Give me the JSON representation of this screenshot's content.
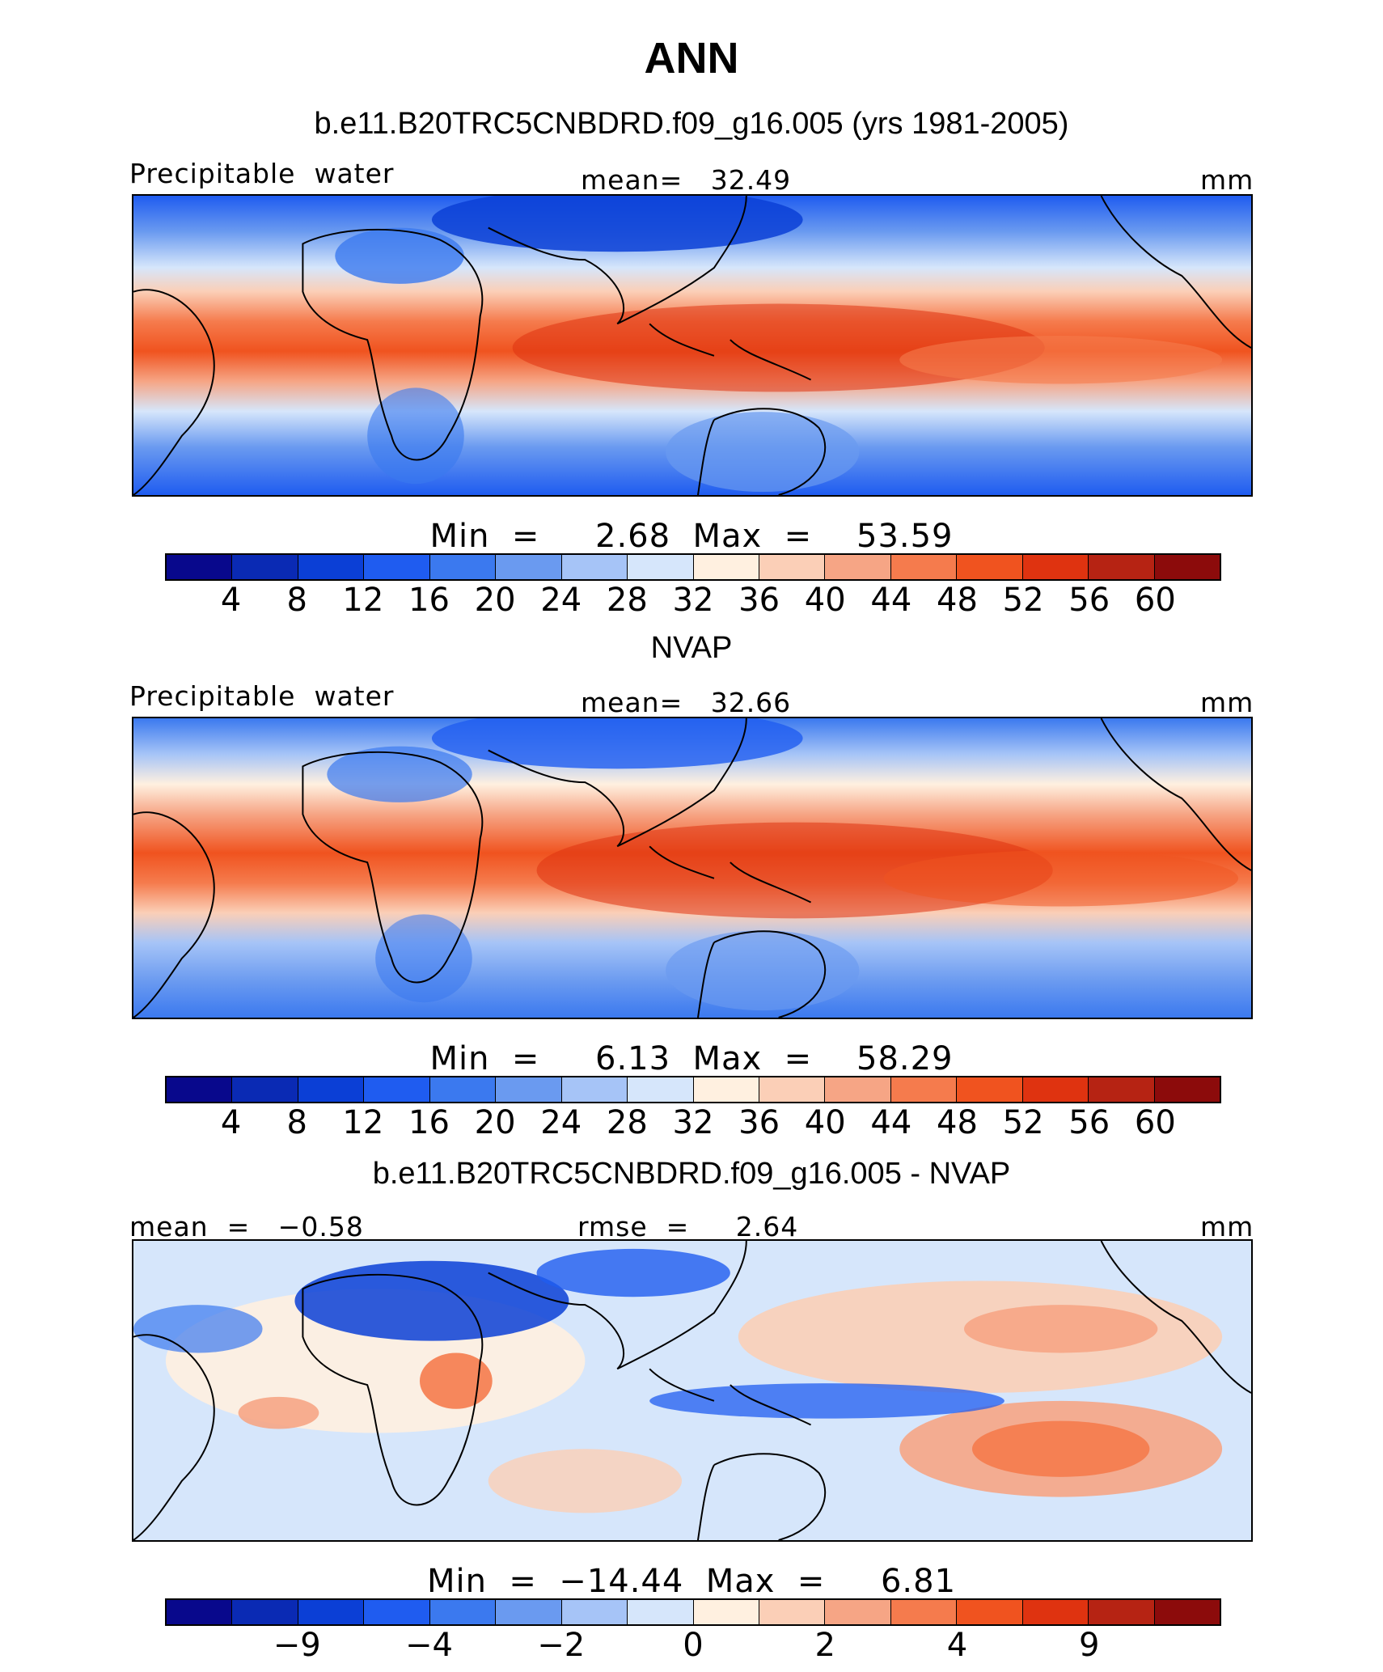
{
  "title": "ANN",
  "colors": {
    "diverging_palette": [
      "#08088c",
      "#0a2ab4",
      "#0b3fd6",
      "#1f5cf0",
      "#3b79ef",
      "#6a9af0",
      "#a6c4f7",
      "#d6e6fb",
      "#fff0e0",
      "#fbcfb7",
      "#f6a585",
      "#f57b4d",
      "#f0531f",
      "#df3310",
      "#b62313",
      "#8c0b0b"
    ]
  },
  "panels": [
    {
      "title": "b.e11.B20TRC5CNBDRD.f09_g16.005 (yrs 1981-2005)",
      "left_label": "Precipitable  water",
      "center_label": "mean=   32.49",
      "units": "mm",
      "minmax": "Min  =     2.68  Max  =    53.59",
      "colorbar_ticks": [
        "4",
        "8",
        "12",
        "16",
        "20",
        "24",
        "28",
        "32",
        "36",
        "40",
        "44",
        "48",
        "52",
        "56",
        "60"
      ],
      "map_icon": "world-map-contour-icon"
    },
    {
      "title": "NVAP",
      "left_label": "Precipitable  water",
      "center_label": "mean=   32.66",
      "units": "mm",
      "minmax": "Min  =     6.13  Max  =    58.29",
      "colorbar_ticks": [
        "4",
        "8",
        "12",
        "16",
        "20",
        "24",
        "28",
        "32",
        "36",
        "40",
        "44",
        "48",
        "52",
        "56",
        "60"
      ],
      "map_icon": "world-map-contour-icon"
    },
    {
      "title": "b.e11.B20TRC5CNBDRD.f09_g16.005 - NVAP",
      "left_label": "mean  =   −0.58",
      "center_label": "rmse  =     2.64",
      "units": "mm",
      "minmax": "Min  =  −14.44  Max  =     6.81",
      "colorbar_ticks": [
        "−9",
        "−4",
        "−2",
        "0",
        "2",
        "4",
        "9"
      ],
      "map_icon": "world-map-difference-icon"
    }
  ],
  "chart_data": [
    {
      "type": "heatmap",
      "title": "b.e11.B20TRC5CNBDRD.f09_g16.005 (yrs 1981-2005)",
      "variable": "Precipitable  water",
      "units": "mm",
      "mean": 32.49,
      "min": 2.68,
      "max": 53.59,
      "contour_levels": [
        4,
        8,
        12,
        16,
        20,
        24,
        28,
        32,
        36,
        40,
        44,
        48,
        52,
        56,
        60
      ]
    },
    {
      "type": "heatmap",
      "title": "NVAP",
      "variable": "Precipitable  water",
      "units": "mm",
      "mean": 32.66,
      "min": 6.13,
      "max": 58.29,
      "contour_levels": [
        4,
        8,
        12,
        16,
        20,
        24,
        28,
        32,
        36,
        40,
        44,
        48,
        52,
        56,
        60
      ]
    },
    {
      "type": "heatmap",
      "title": "b.e11.B20TRC5CNBDRD.f09_g16.005 - NVAP",
      "units": "mm",
      "mean": -0.58,
      "rmse": 2.64,
      "min": -14.44,
      "max": 6.81,
      "contour_levels": [
        -9,
        -4,
        -2,
        0,
        2,
        4,
        9
      ]
    }
  ]
}
